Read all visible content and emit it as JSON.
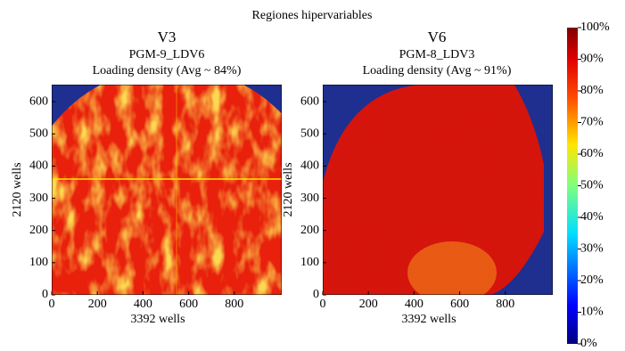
{
  "suptitle": "Regiones hipervariables",
  "chart_data": [
    {
      "type": "image",
      "title": "V3",
      "subtitle": "PGM-9_LDV6",
      "caption": "Loading density (Avg ~ 84%)",
      "xlabel": "3392 wells",
      "ylabel": "2120 wells",
      "xlim": [
        0,
        1008
      ],
      "ylim": [
        0,
        653
      ],
      "xticks": [
        0,
        200,
        400,
        600,
        800
      ],
      "yticks": [
        0,
        100,
        200,
        300,
        400,
        500,
        600
      ]
    },
    {
      "type": "image",
      "title": "V6",
      "subtitle": "PGM-8_LDV3",
      "caption": "Loading density (Avg ~ 91%)",
      "xlabel": "3392 wells",
      "ylabel": "2120 wells",
      "xlim": [
        0,
        1008
      ],
      "ylim": [
        0,
        653
      ],
      "xticks": [
        0,
        200,
        400,
        600,
        800
      ],
      "yticks": [
        0,
        100,
        200,
        300,
        400,
        500,
        600
      ]
    }
  ],
  "colorbar": {
    "lim": [
      0,
      100
    ],
    "ticks": [
      {
        "value": 0,
        "label": "0%"
      },
      {
        "value": 10,
        "label": "10%"
      },
      {
        "value": 20,
        "label": "20%"
      },
      {
        "value": 30,
        "label": "30%"
      },
      {
        "value": 40,
        "label": "40%"
      },
      {
        "value": 50,
        "label": "50%"
      },
      {
        "value": 60,
        "label": "60%"
      },
      {
        "value": 70,
        "label": "70%"
      },
      {
        "value": 80,
        "label": "80%"
      },
      {
        "value": 90,
        "label": "90%"
      },
      {
        "value": 100,
        "label": "100%"
      }
    ]
  }
}
